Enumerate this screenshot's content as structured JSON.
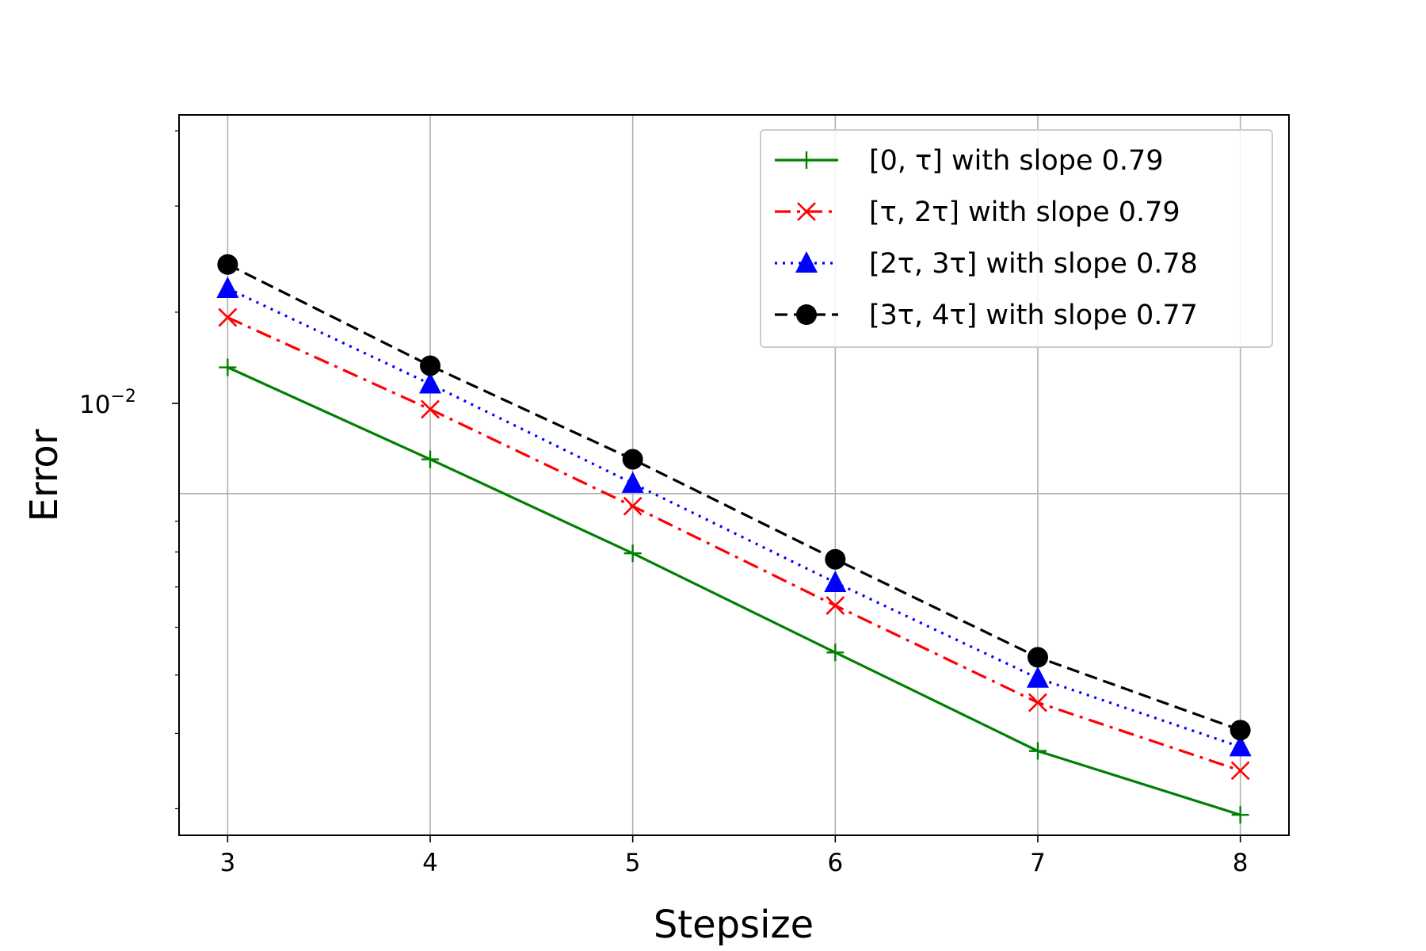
{
  "chart_data": {
    "type": "line",
    "xlabel": "Stepsize",
    "ylabel": "Error",
    "y_scale": "log",
    "xlim": [
      2.76,
      8.24
    ],
    "ylim": [
      0.00271,
      0.0425
    ],
    "grid": true,
    "legend_position": "top-right",
    "x_ticks": [
      "3",
      "4",
      "5",
      "6",
      "7",
      "8"
    ],
    "y_tick_major": {
      "value": 0.01,
      "base": "10",
      "exponent": "−2"
    },
    "x": [
      3,
      4,
      5,
      6,
      7,
      8
    ],
    "series": [
      {
        "name": "[0, τ] with slope 0.79",
        "color": "#008000",
        "marker": "plus",
        "line_style": "solid",
        "values": [
          0.0162,
          0.0114,
          0.00796,
          0.00545,
          0.00374,
          0.00293
        ]
      },
      {
        "name": "[τ, 2τ] with slope 0.79",
        "color": "#ff0000",
        "marker": "x",
        "line_style": "dashdot",
        "values": [
          0.0196,
          0.0138,
          0.00953,
          0.00652,
          0.0045,
          0.00347
        ]
      },
      {
        "name": "[2τ, 3τ] with slope 0.78",
        "color": "#0000ff",
        "marker": "triangle",
        "line_style": "dotted",
        "values": [
          0.0219,
          0.0152,
          0.0104,
          0.00712,
          0.00494,
          0.0038
        ]
      },
      {
        "name": "[3τ, 4τ] with slope 0.77",
        "color": "#000000",
        "marker": "circle",
        "line_style": "dashed",
        "values": [
          0.024,
          0.0163,
          0.0114,
          0.00778,
          0.00535,
          0.00405
        ]
      }
    ]
  }
}
